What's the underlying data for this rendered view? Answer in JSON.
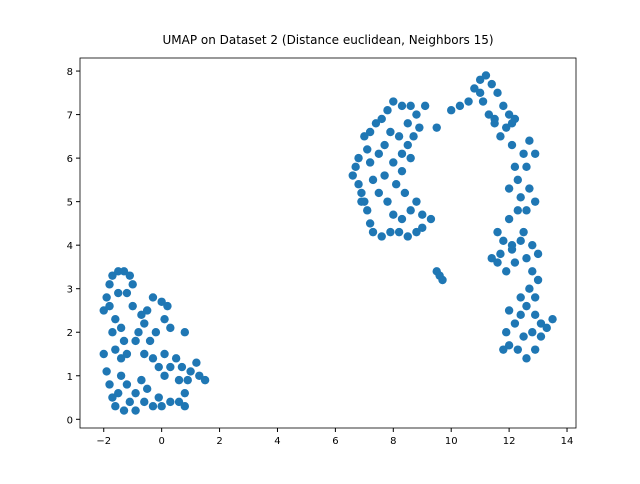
{
  "chart_data": {
    "type": "scatter",
    "title": "UMAP on Dataset 2 (Distance euclidean, Neighbors 15)",
    "color": "#1f77b4",
    "xlim": [
      -2.82,
      14.31
    ],
    "ylim": [
      -0.2,
      8.3
    ],
    "xticks": [
      {
        "value": -2,
        "label": "−2"
      },
      0,
      2,
      4,
      6,
      8,
      10,
      12,
      14
    ],
    "yticks": [
      0,
      1,
      2,
      3,
      4,
      5,
      6,
      7,
      8
    ],
    "x": [
      -2.0,
      -1.9,
      -1.8,
      -1.7,
      -1.5,
      -1.3,
      -1.1,
      -1.0,
      -1.5,
      -1.2,
      -1.8,
      -1.6,
      -1.4,
      -1.3,
      -1.6,
      -1.4,
      -1.2,
      -0.9,
      -0.8,
      -0.6,
      -0.5,
      -0.3,
      0,
      0.2,
      0.1,
      -0.2,
      -0.4,
      0.1,
      0.3,
      0.8,
      -2.0,
      -1.9,
      -1.8,
      -1.7,
      -1.6,
      -1.3,
      -1.1,
      -0.9,
      -1.2,
      -1.4,
      -0.7,
      -0.5,
      -0.6,
      -0.3,
      -0.1,
      0.0,
      0.3,
      0.6,
      0.8,
      0.9,
      0.7,
      0.5,
      0.3,
      0.1,
      -0.1,
      -0.3,
      -0.6,
      1.0,
      1.2,
      1.3,
      1.5,
      0.8,
      -0.9,
      -1.5,
      -1.7,
      -1.0,
      -0.7,
      0.6,
      6.6,
      6.7,
      6.8,
      6.9,
      7.0,
      7.1,
      7.2,
      7.3,
      7.6,
      7.9,
      8.2,
      8.5,
      8.8,
      9.0,
      8.3,
      8.0,
      8.6,
      9.0,
      9.3,
      8.8,
      8.4,
      8.1,
      8.3,
      8.0,
      7.7,
      7.5,
      7.3,
      7.2,
      7.1,
      7.2,
      7.4,
      7.6,
      7.8,
      8.0,
      8.3,
      8.6,
      8.8,
      8.9,
      8.7,
      8.5,
      8.3,
      8.6,
      8.2,
      7.9,
      7.7,
      7.5,
      6.8,
      6.9,
      7.8,
      8.5,
      9.5,
      9.1,
      7.0,
      9.5,
      9.6,
      9.7,
      10.0,
      10.3,
      10.6,
      10.8,
      11.0,
      11.2,
      11.4,
      11.6,
      11.1,
      11.3,
      11.5,
      11.8,
      12.0,
      12.2,
      11.9,
      11.7,
      12.1,
      12.5,
      12.7,
      12.9,
      12.6,
      12.3,
      12.0,
      12.4,
      12.7,
      12.9,
      12.6,
      12.3,
      12.0,
      11.6,
      11.8,
      12.1,
      12.4,
      12.8,
      13.0,
      12.6,
      12.2,
      11.7,
      11.4,
      11.9,
      12.8,
      13.0,
      12.7,
      12.9,
      12.6,
      12.4,
      12.0,
      12.2,
      11.9,
      12.0,
      12.3,
      12.5,
      12.8,
      13.1,
      13.3,
      13.5,
      12.9,
      12.6,
      11.8,
      12.9,
      13.1,
      12.4,
      12.1,
      11.6,
      12.5,
      12.2,
      11.5,
      12.1,
      11.0
    ],
    "values": [
      2.5,
      2.8,
      3.1,
      3.3,
      3.4,
      3.4,
      3.3,
      3.1,
      2.9,
      2.9,
      2.6,
      2.3,
      2.1,
      1.8,
      1.6,
      1.4,
      1.5,
      1.8,
      2.0,
      2.2,
      2.5,
      2.8,
      2.7,
      2.6,
      2.3,
      2.0,
      1.8,
      1.5,
      2.1,
      2.0,
      1.5,
      1.1,
      0.8,
      0.5,
      0.3,
      0.2,
      0.4,
      0.6,
      0.8,
      1.0,
      0.9,
      0.7,
      0.4,
      0.3,
      0.5,
      0.3,
      0.4,
      0.4,
      0.6,
      0.9,
      1.2,
      1.4,
      1.2,
      1.0,
      1.2,
      1.4,
      1.5,
      1.1,
      1.3,
      1.0,
      0.9,
      0.3,
      0.2,
      0.6,
      2.0,
      2.6,
      2.4,
      0.9,
      5.6,
      5.8,
      5.4,
      5.2,
      5.0,
      4.8,
      4.5,
      4.3,
      4.2,
      4.3,
      4.3,
      4.2,
      4.3,
      4.4,
      4.6,
      4.7,
      4.8,
      4.7,
      4.6,
      5.0,
      5.2,
      5.4,
      5.7,
      5.9,
      5.6,
      5.2,
      5.5,
      5.9,
      6.2,
      6.6,
      6.8,
      6.9,
      7.1,
      7.3,
      7.2,
      7.2,
      7.0,
      6.7,
      6.5,
      6.3,
      6.1,
      6.0,
      6.5,
      6.6,
      6.3,
      6.1,
      6.0,
      5.0,
      5.0,
      6.8,
      6.7,
      7.2,
      6.5,
      3.4,
      3.3,
      3.2,
      7.1,
      7.2,
      7.3,
      7.6,
      7.8,
      7.9,
      7.7,
      7.5,
      7.3,
      7.0,
      6.9,
      7.2,
      7.0,
      6.9,
      6.7,
      6.5,
      6.3,
      6.1,
      6.4,
      6.1,
      5.8,
      5.5,
      5.3,
      5.1,
      5.3,
      5.0,
      4.8,
      4.8,
      4.6,
      4.3,
      4.1,
      4.0,
      4.1,
      4.0,
      3.8,
      3.7,
      3.6,
      3.8,
      3.7,
      3.4,
      3.4,
      3.2,
      3.0,
      2.8,
      2.6,
      2.4,
      2.5,
      2.2,
      2.0,
      1.7,
      1.6,
      1.9,
      2.0,
      2.2,
      2.1,
      2.3,
      1.6,
      1.4,
      1.6,
      2.4,
      1.9,
      2.8,
      3.9,
      3.6,
      4.3,
      5.8,
      6.8,
      6.8,
      7.5
    ]
  }
}
